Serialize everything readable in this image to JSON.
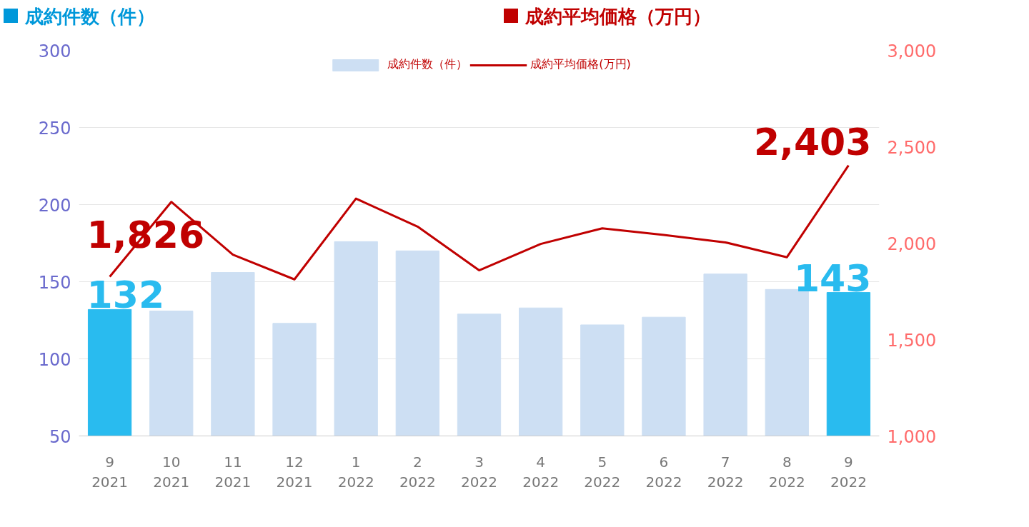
{
  "chart_data": {
    "type": "bar",
    "ylabel": "成約件数（件）",
    "y2label": "成約平均価格（万円）",
    "categories": [
      "9\n2021",
      "10\n2021",
      "11\n2021",
      "12\n2021",
      "1\n2022",
      "2\n2022",
      "3\n2022",
      "4\n2022",
      "5\n2022",
      "6\n2022",
      "7\n2022",
      "8\n2022",
      "9\n2022"
    ],
    "series": [
      {
        "name": "成約件数（件）",
        "color": "#cddff3",
        "colors": [
          "#29bbef",
          "#cddff3",
          "#cddff3",
          "#cddff3",
          "#cddff3",
          "#cddff3",
          "#cddff3",
          "#cddff3",
          "#cddff3",
          "#cddff3",
          "#cddff3",
          "#cddff3",
          "#29bbef"
        ],
        "values": [
          132,
          131,
          156,
          123,
          176,
          170,
          129,
          133,
          122,
          127,
          155,
          145,
          143
        ],
        "value_labels": [
          "132",
          null,
          null,
          null,
          null,
          null,
          null,
          null,
          null,
          null,
          null,
          null,
          "143"
        ]
      },
      {
        "name": "成約平均価格(万円)",
        "type": "line",
        "axis": "y2",
        "color": "#c00000",
        "values": [
          1826,
          2214,
          1940,
          1812,
          2231,
          2086,
          1859,
          1996,
          2077,
          2043,
          2004,
          1927,
          2403
        ],
        "value_labels": [
          "1,826",
          null,
          null,
          null,
          null,
          null,
          null,
          null,
          null,
          null,
          null,
          null,
          "2,403"
        ]
      }
    ],
    "ylim": [
      50,
      300
    ],
    "yticks": [
      50,
      100,
      150,
      200,
      250,
      300
    ],
    "y2lim": [
      1000,
      3000
    ],
    "y2ticks": [
      {
        "value": 1000,
        "label": "1,000"
      },
      {
        "value": 1500,
        "label": "1,500"
      },
      {
        "value": 2000,
        "label": "2,000"
      },
      {
        "value": 2500,
        "label": "2,500"
      },
      {
        "value": 3000,
        "label": "3,000"
      }
    ],
    "grid": "y",
    "legend": "top",
    "marker": "none",
    "line_style": "solid"
  }
}
